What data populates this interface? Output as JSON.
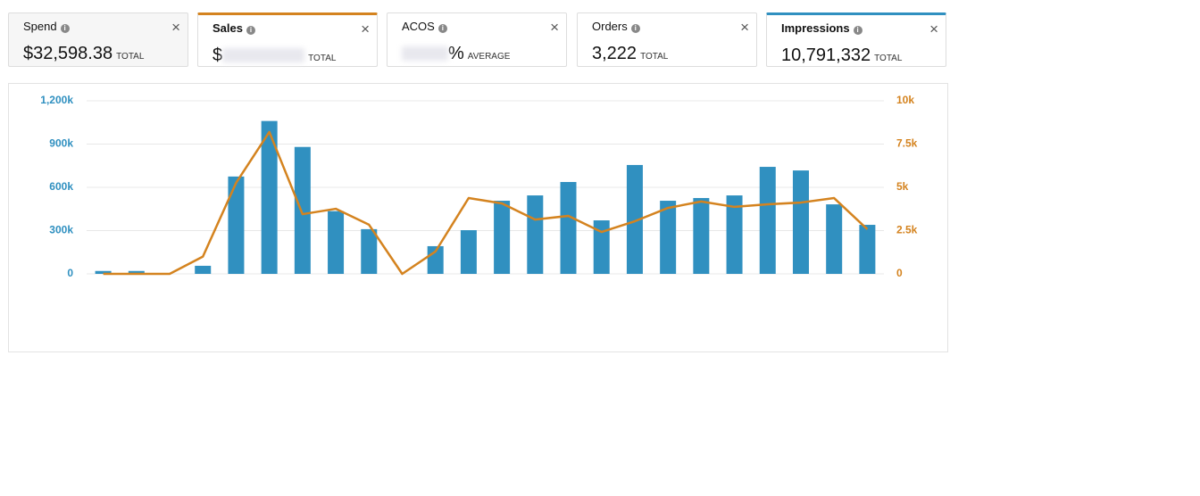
{
  "cards": [
    {
      "title": "Spend",
      "value": "$32,598.38",
      "unit": "TOTAL"
    },
    {
      "title": "Sales",
      "value": "$",
      "unit": "TOTAL"
    },
    {
      "title": "ACOS",
      "value": "%",
      "unit": "AVERAGE"
    },
    {
      "title": "Orders",
      "value": "3,222",
      "unit": "TOTAL"
    },
    {
      "title": "Impressions",
      "value": "10,791,332",
      "unit": "TOTAL"
    }
  ],
  "chart_data": {
    "type": "bar-line",
    "series": [
      {
        "type": "bar",
        "color": "#3090c0",
        "axis": "y",
        "values": [
          20000,
          20000,
          0,
          56000,
          675000,
          1060000,
          880000,
          435000,
          310000,
          0,
          192000,
          303000,
          507000,
          544000,
          637000,
          371000,
          755000,
          507000,
          526000,
          544000,
          742000,
          717000,
          482000,
          340000
        ]
      },
      {
        "type": "line",
        "color": "#d4831f",
        "axis": "y2",
        "values": [
          0,
          0,
          0,
          1000,
          5260,
          8200,
          3450,
          3760,
          2840,
          0,
          1290,
          4380,
          4070,
          3140,
          3350,
          2420,
          3040,
          3810,
          4180,
          3870,
          4020,
          4120,
          4380,
          2580
        ]
      }
    ],
    "ylim": [
      0,
      1200000
    ],
    "yticks": [
      0,
      {
        "value": 300000,
        "label": "300k"
      },
      {
        "value": 600000,
        "label": "600k"
      },
      {
        "value": 900000,
        "label": "900k"
      },
      {
        "value": 1200000,
        "label": "1,200k"
      }
    ],
    "y2lim": [
      0,
      10000
    ],
    "y2ticks": [
      0,
      {
        "value": 2500,
        "label": "2.5k"
      },
      {
        "value": 5000,
        "label": "5k"
      },
      {
        "value": 7500,
        "label": "7.5k"
      },
      {
        "value": 10000,
        "label": "10k"
      }
    ],
    "grid": true
  }
}
